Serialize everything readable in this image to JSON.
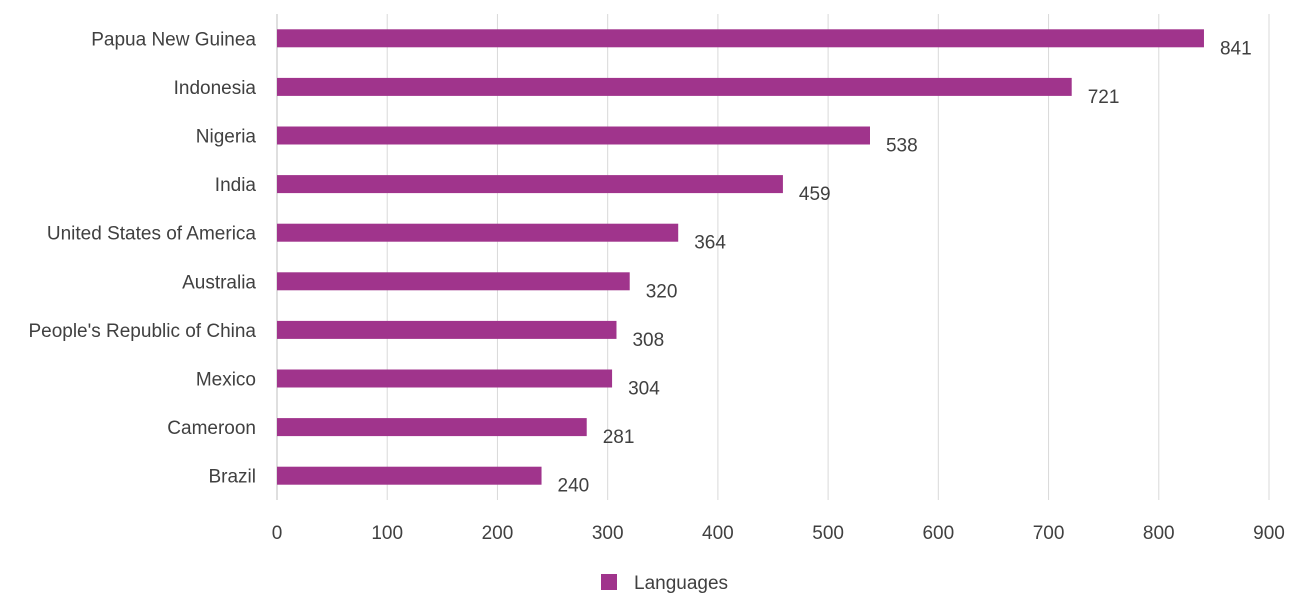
{
  "chart_data": {
    "type": "bar",
    "orientation": "horizontal",
    "categories": [
      "Papua New Guinea",
      "Indonesia",
      "Nigeria",
      "India",
      "United States of America",
      "Australia",
      "People's Republic of China",
      "Mexico",
      "Cameroon",
      "Brazil"
    ],
    "series": [
      {
        "name": "Languages",
        "values": [
          841,
          721,
          538,
          459,
          364,
          320,
          308,
          304,
          281,
          240
        ]
      }
    ],
    "data_labels": [
      "841",
      "721",
      "538",
      "459",
      "364",
      "320",
      "308",
      "304",
      "281",
      "240"
    ],
    "xlim": [
      0,
      900
    ],
    "x_ticks": [
      "0",
      "100",
      "200",
      "300",
      "400",
      "500",
      "600",
      "700",
      "800",
      "900"
    ],
    "grid": "vertical",
    "legend": "bottom-center",
    "colors": {
      "bar": "#a0348c"
    }
  }
}
